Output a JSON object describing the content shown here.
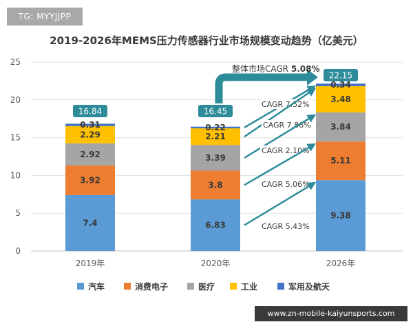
{
  "watermark": "TG: MYYJJPP",
  "footer_url": "www.zn-mobile-kaiyunsports.com",
  "chart_data": {
    "type": "bar",
    "stacked": true,
    "title": "2019-2026年MEMS压力传感器行业市场规模变动趋势（亿美元）",
    "categories": [
      "2019年",
      "2020年",
      "2026年"
    ],
    "ylim": [
      0,
      25
    ],
    "yticks": [
      0,
      5,
      10,
      15,
      20,
      25
    ],
    "grid": true,
    "legend_position": "bottom",
    "series": [
      {
        "name": "汽车",
        "color": "#5b9bd5",
        "values": [
          7.4,
          6.83,
          9.38
        ],
        "labels": [
          "7.4",
          "6.83",
          "9.38"
        ]
      },
      {
        "name": "消费电子",
        "color": "#ed7d31",
        "values": [
          3.92,
          3.8,
          5.11
        ],
        "labels": [
          "3.92",
          "3.8",
          "5.11"
        ]
      },
      {
        "name": "医疗",
        "color": "#a5a5a5",
        "values": [
          2.92,
          3.39,
          3.84
        ],
        "labels": [
          "2.92",
          "3.39",
          "3.84"
        ]
      },
      {
        "name": "工业",
        "color": "#ffc000",
        "values": [
          2.29,
          2.21,
          3.48
        ],
        "labels": [
          "2.29",
          "2.21",
          "3.48"
        ]
      },
      {
        "name": "军用及航天",
        "color": "#4472c4",
        "values": [
          0.31,
          0.22,
          0.34
        ],
        "labels": [
          "0.31",
          "0.22",
          "0.34"
        ]
      }
    ],
    "totals": [
      "16.84",
      "16.45",
      "22.15"
    ],
    "overall_cagr": {
      "label": "整体市场CAGR",
      "value": "5.08%"
    },
    "segment_cagr": [
      {
        "series": "军用及航天",
        "text": "CAGR 7.52%"
      },
      {
        "series": "工业",
        "text": "CAGR 7.86%"
      },
      {
        "series": "医疗",
        "text": "CAGR 2.10%"
      },
      {
        "series": "消费电子",
        "text": "CAGR 5.06%"
      },
      {
        "series": "汽车",
        "text": "CAGR 5.43%"
      }
    ],
    "annotation_color": "#2e8b9a",
    "total_box_color": "#2e8b9a"
  }
}
